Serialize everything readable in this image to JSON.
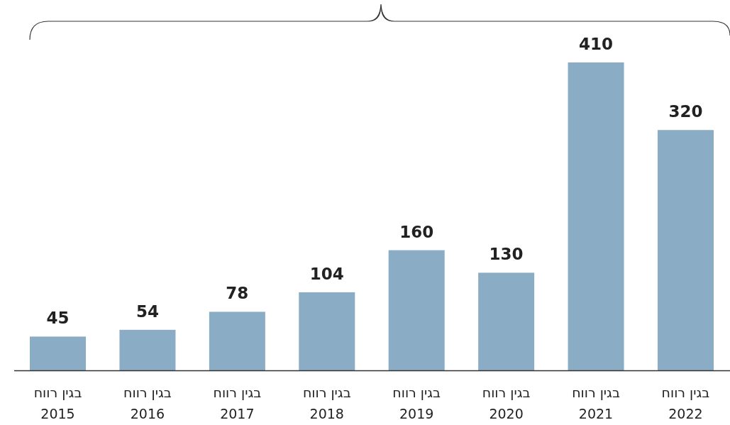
{
  "chart_data": {
    "type": "bar",
    "categories": [
      "בגין רווח\n2015",
      "בגין רווח\n2016",
      "בגין רווח\n2017",
      "בגין רווח\n2018",
      "בגין רווח\n2019",
      "בגין רווח\n2020",
      "בגין רווח\n2021",
      "בגין רווח\n2022"
    ],
    "values": [
      45,
      54,
      78,
      104,
      160,
      130,
      410,
      320
    ],
    "color": "#8aacc4",
    "data_labels": true,
    "relative": false
  }
}
